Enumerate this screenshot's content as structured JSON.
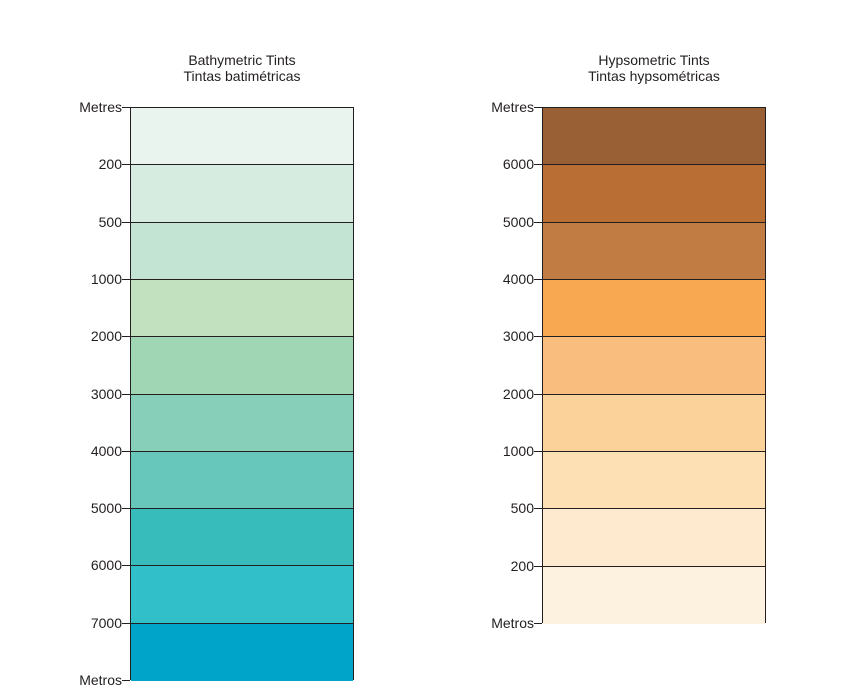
{
  "bathymetric": {
    "title_line1": "Bathymetric Tints",
    "title_line2": "Tintas batimétricas",
    "labels": [
      "Metres",
      "200",
      "500",
      "1000",
      "2000",
      "3000",
      "4000",
      "5000",
      "6000",
      "7000",
      "Metros"
    ],
    "colors": [
      "#eaf4ef",
      "#d6ece0",
      "#c3e4d3",
      "#c2e1bf",
      "#a1d6b4",
      "#87cfb8",
      "#67c7bb",
      "#38bcbb",
      "#31c0c9",
      "#00a4c9"
    ]
  },
  "hypsometric": {
    "title_line1": "Hypsometric Tints",
    "title_line2": "Tintas hypsométricas",
    "labels": [
      "Metres",
      "6000",
      "5000",
      "4000",
      "3000",
      "2000",
      "1000",
      "500",
      "200",
      "Metros"
    ],
    "colors": [
      "#995f35",
      "#b96e33",
      "#c07c42",
      "#f9a852",
      "#f9be7e",
      "#fcd29b",
      "#fde0b4",
      "#feebcf",
      "#fdf1e0"
    ]
  }
}
